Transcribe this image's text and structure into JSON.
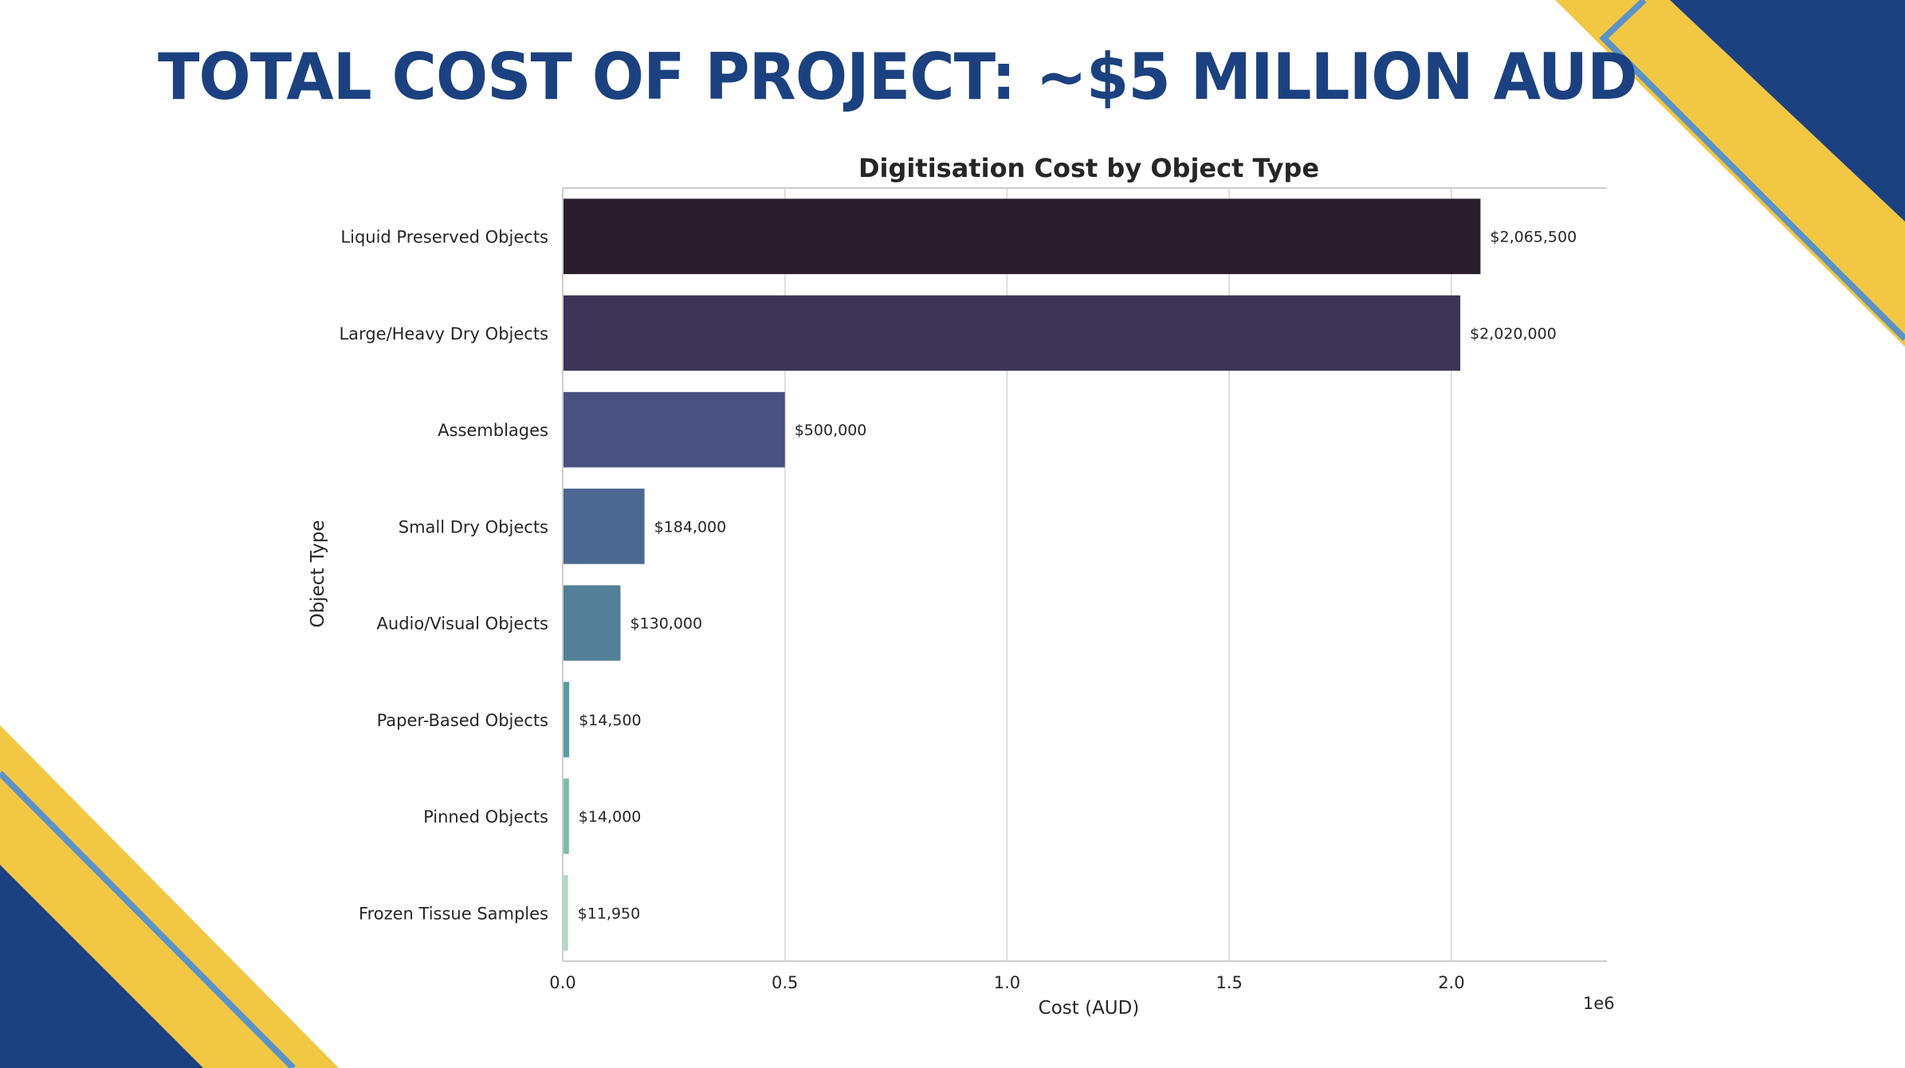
{
  "slide": {
    "title": "TOTAL COST OF PROJECT: ~$5 MILLION AUD",
    "colors": {
      "navy": "#1c4180",
      "yellow": "#f2c744",
      "steel_blue": "#5b93c7"
    }
  },
  "chart_data": {
    "type": "bar",
    "orientation": "horizontal",
    "title": "Digitisation Cost by Object Type",
    "xlabel": "Cost (AUD)",
    "ylabel": "Object Type",
    "x_scale_label": "1e6",
    "xlim": [
      0,
      2.35
    ],
    "xticks": [
      "0.0",
      "0.5",
      "1.0",
      "1.5",
      "2.0"
    ],
    "grid": true,
    "categories": [
      "Liquid Preserved Objects",
      "Large/Heavy Dry Objects",
      "Assemblages",
      "Small Dry Objects",
      "Audio/Visual Objects",
      "Paper-Based Objects",
      "Pinned Objects",
      "Frozen Tissue Samples"
    ],
    "values": [
      2065500,
      2020000,
      500000,
      184000,
      130000,
      14500,
      14000,
      11950
    ],
    "value_labels": [
      "$2,065,500",
      "$2,020,000",
      "$500,000",
      "$184,000",
      "$130,000",
      "$14,500",
      "$14,000",
      "$11,950"
    ],
    "colors": [
      "#281e2e",
      "#3c3456",
      "#4a5080",
      "#4b6890",
      "#538096",
      "#5c9ba0",
      "#7cbca9",
      "#b0d8c4"
    ]
  }
}
